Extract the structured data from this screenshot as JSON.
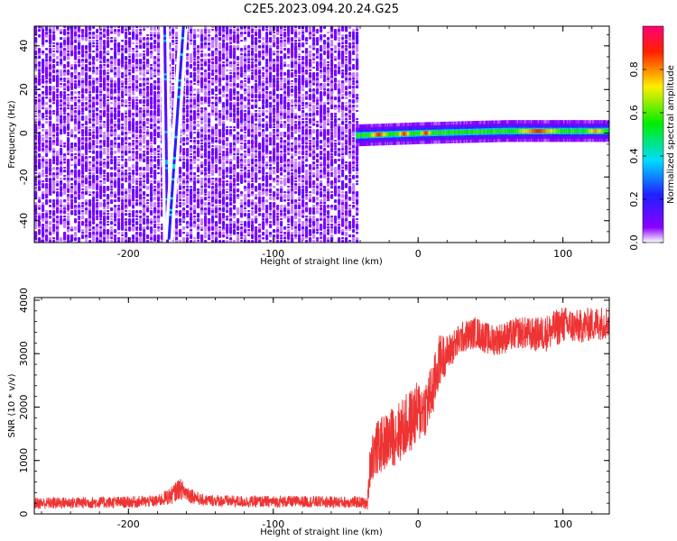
{
  "title": "C2E5.2023.094.20.24.G25",
  "chart_data": [
    {
      "type": "heatmap",
      "xlabel": "Height of straight line (km)",
      "ylabel": "Frequency (Hz)",
      "xlim": [
        -265,
        132
      ],
      "ylim": [
        -50,
        49
      ],
      "xticks": [
        -200,
        -100,
        0,
        100
      ],
      "xtick_labels": [
        "-200",
        "-100",
        "0",
        "100"
      ],
      "yticks": [
        -40,
        -20,
        0,
        20,
        40
      ],
      "ytick_labels": [
        "-40",
        "-20",
        "0",
        "20",
        "40"
      ],
      "colorbar": {
        "label": "Normalized spectral amplitude",
        "range": [
          0,
          1
        ],
        "ticks": [
          0,
          0.2,
          0.4,
          0.6,
          0.8
        ],
        "tick_labels": [
          "0.0",
          "0.2",
          "0.4",
          "0.6",
          "0.8"
        ],
        "colors": [
          "#ffffff",
          "#8a00ff",
          "#2020ff",
          "#00ddff",
          "#00ee00",
          "#ffee00",
          "#ff2200",
          "#ff0077"
        ]
      },
      "noise_region": {
        "x": [
          -265,
          -43
        ],
        "level": 0.1
      },
      "streaks": [
        {
          "x0": -173,
          "y0": -50,
          "x1": -175,
          "y1": 49,
          "level": 0.15
        },
        {
          "x0": -172,
          "y0": -48,
          "x1": -162,
          "y1": 49,
          "level": 0.2
        }
      ],
      "carrier_band": {
        "x": [
          -43,
          132
        ],
        "y_center": [
          [
            -43,
            -1
          ],
          [
            0,
            0
          ],
          [
            60,
            1
          ],
          [
            132,
            1
          ]
        ],
        "peaks": [
          {
            "x": [
              -35,
              -20
            ],
            "level": 0.9
          },
          {
            "x": [
              -15,
              -5
            ],
            "level": 0.9
          },
          {
            "x": [
              0,
              10
            ],
            "level": 0.9
          },
          {
            "x": [
              65,
              100
            ],
            "level": 0.9
          },
          {
            "x": [
              112,
              132
            ],
            "level": 0.8
          }
        ]
      },
      "grid": false
    },
    {
      "type": "line",
      "xlabel": "Height of straight line (km)",
      "ylabel": "SNR (10 * v/v)",
      "xlim": [
        -265,
        132
      ],
      "ylim": [
        0,
        4050
      ],
      "xticks": [
        -200,
        -100,
        0,
        100
      ],
      "xtick_labels": [
        "-200",
        "-100",
        "0",
        "100"
      ],
      "yticks": [
        0,
        1000,
        2000,
        3000,
        4000
      ],
      "ytick_labels": [
        "0",
        "1000",
        "2000",
        "3000",
        "4000"
      ],
      "color": "#ee3333",
      "grid": false,
      "series": [
        {
          "x": [
            -265,
            -240,
            -200,
            -180,
            -170,
            -165,
            -160,
            -150,
            -120,
            -80,
            -50,
            -40,
            -35,
            -33,
            -30,
            -20,
            -10,
            0,
            5,
            10,
            15,
            20,
            30,
            40,
            50,
            60,
            70,
            80,
            90,
            100,
            110,
            120,
            132
          ],
          "values": [
            200,
            210,
            220,
            240,
            350,
            480,
            400,
            260,
            230,
            230,
            220,
            220,
            180,
            1000,
            1200,
            1400,
            1600,
            1900,
            2000,
            2300,
            2900,
            3000,
            3300,
            3400,
            3250,
            3300,
            3400,
            3350,
            3400,
            3550,
            3500,
            3550,
            3600
          ],
          "noise": [
            110,
            110,
            110,
            110,
            170,
            200,
            170,
            110,
            110,
            110,
            110,
            110,
            110,
            450,
            500,
            550,
            600,
            600,
            550,
            550,
            500,
            350,
            300,
            300,
            300,
            300,
            300,
            320,
            350,
            350,
            320,
            320,
            320
          ]
        }
      ]
    }
  ]
}
